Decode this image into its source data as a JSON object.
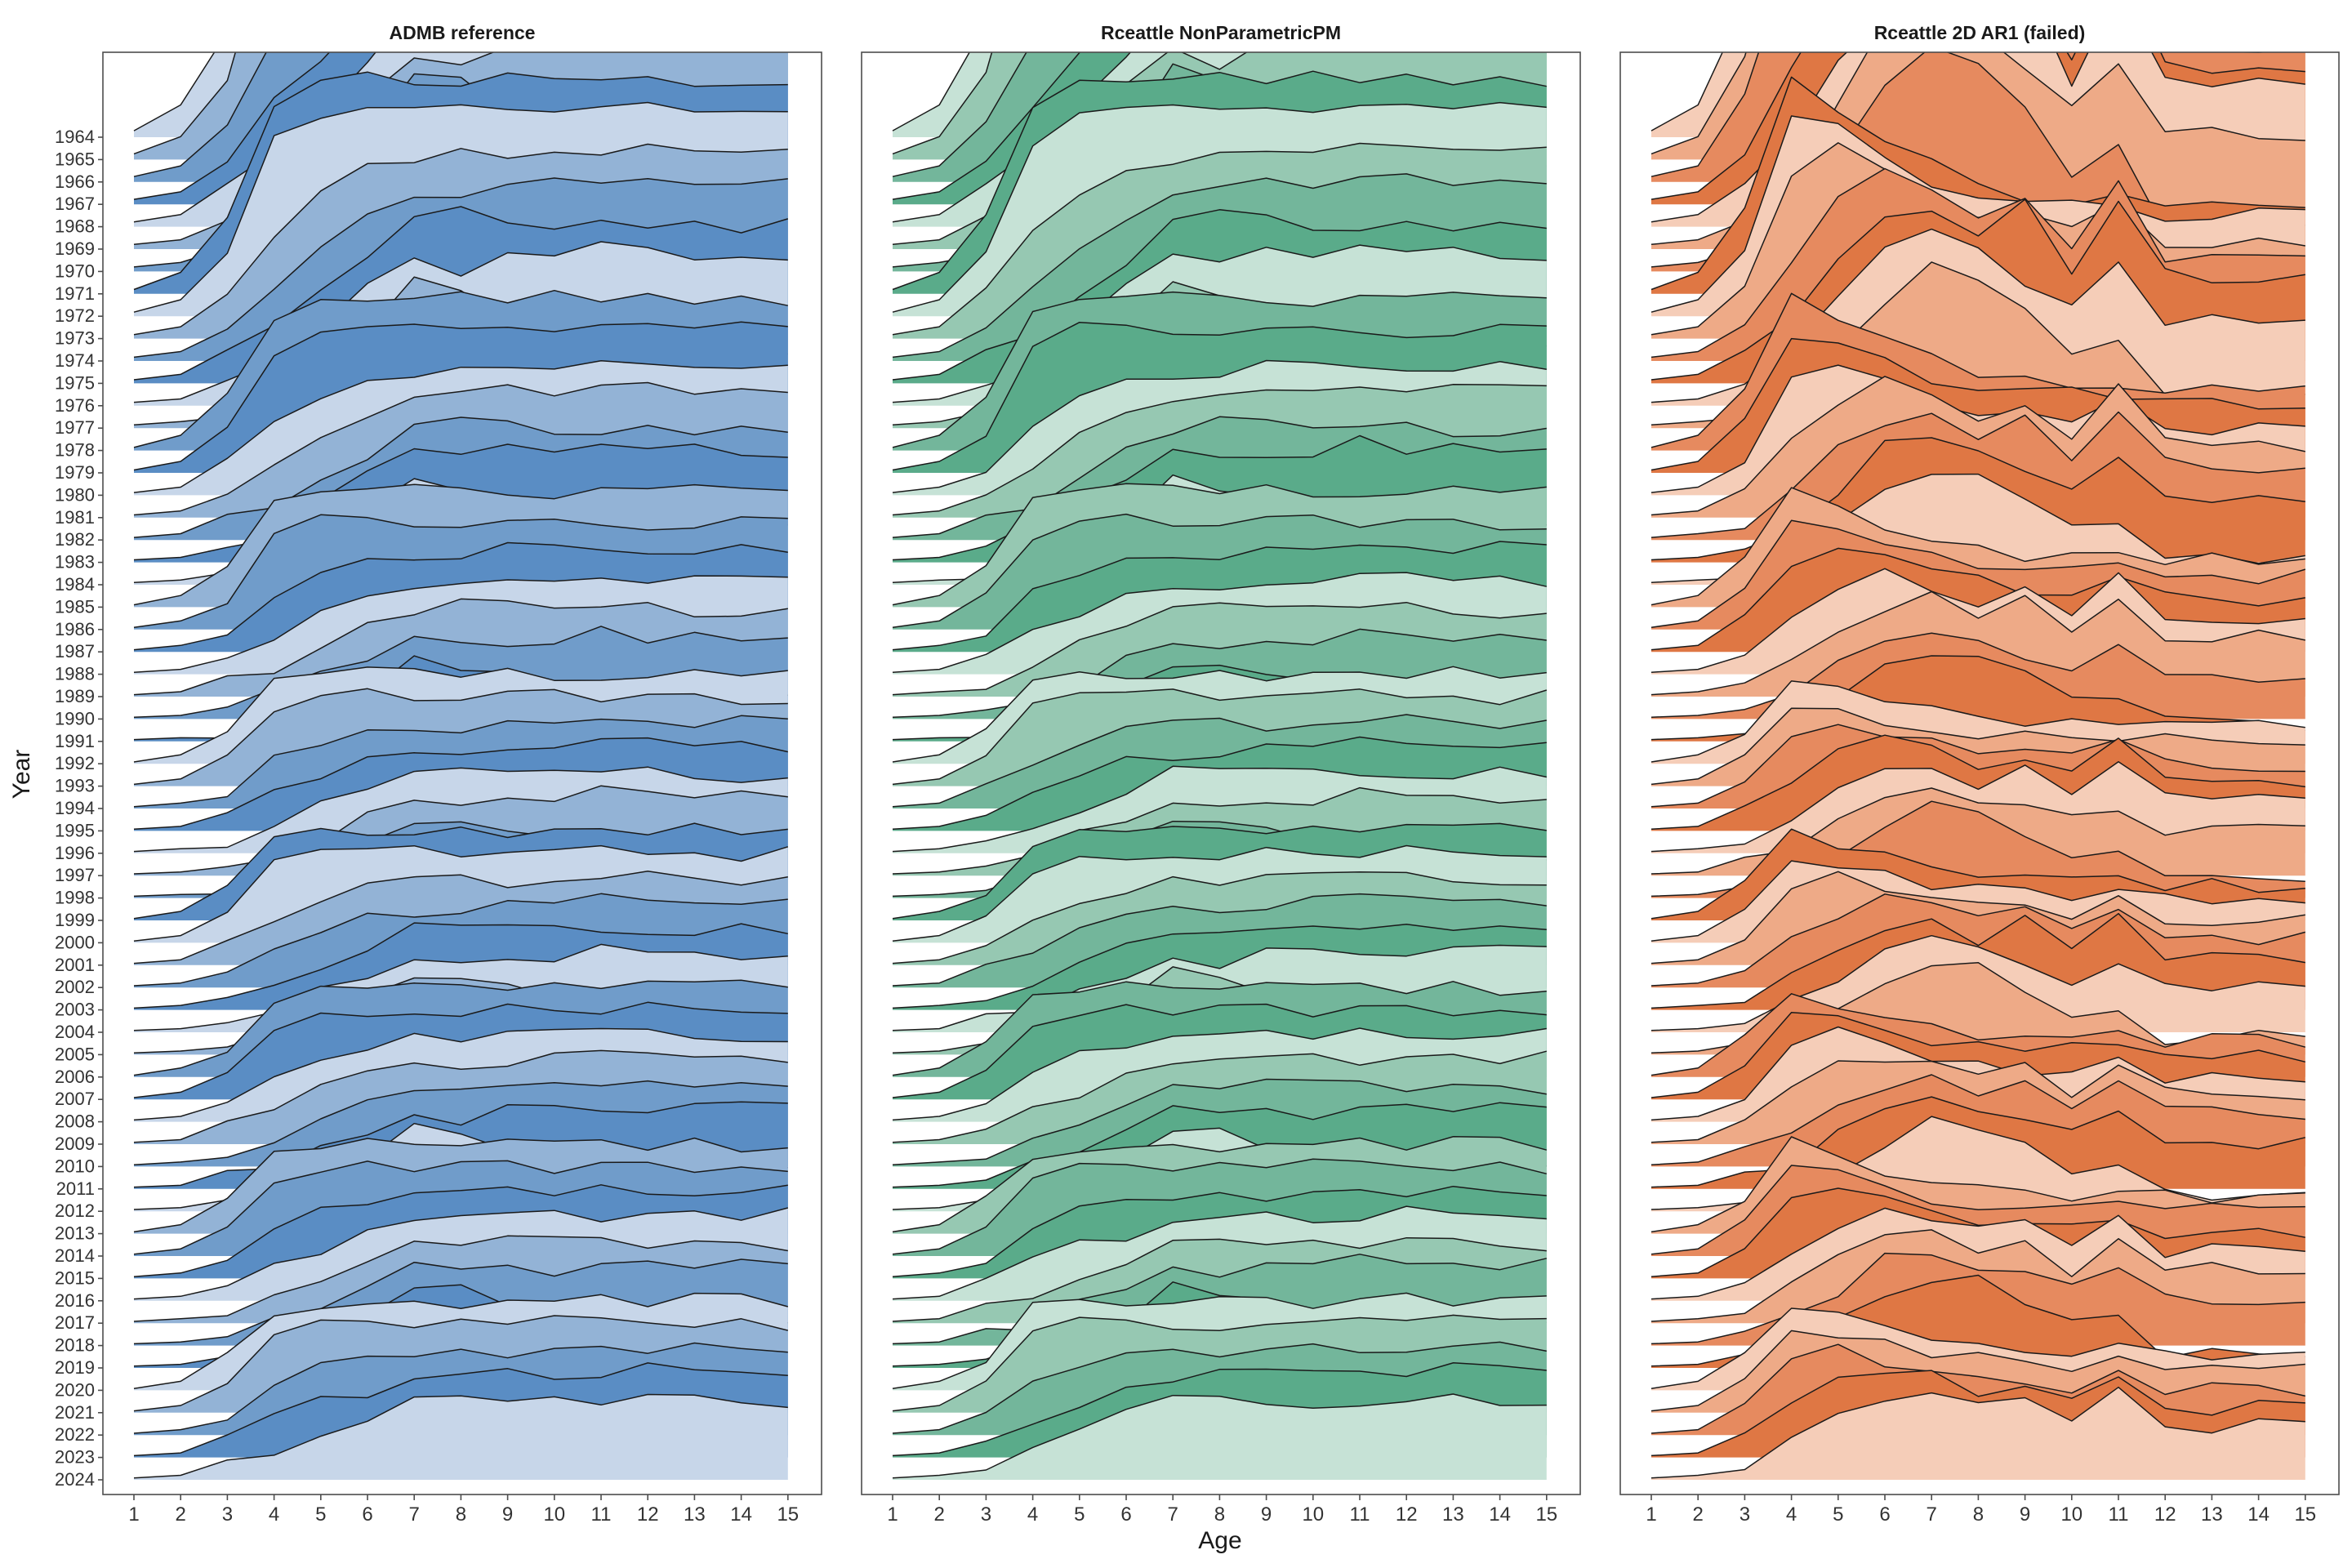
{
  "chart_data": {
    "type": "ridgeline",
    "xlabel": "Age",
    "ylabel": "Year",
    "ages": [
      1,
      2,
      3,
      4,
      5,
      6,
      7,
      8,
      9,
      10,
      11,
      12,
      13,
      14,
      15
    ],
    "years": [
      1964,
      1965,
      1966,
      1967,
      1968,
      1969,
      1970,
      1971,
      1972,
      1973,
      1974,
      1975,
      1976,
      1977,
      1978,
      1979,
      1980,
      1981,
      1982,
      1983,
      1984,
      1985,
      1986,
      1987,
      1988,
      1989,
      1990,
      1991,
      1992,
      1993,
      1994,
      1995,
      1996,
      1997,
      1998,
      1999,
      2000,
      2001,
      2002,
      2003,
      2004,
      2005,
      2006,
      2007,
      2008,
      2009,
      2010,
      2011,
      2012,
      2013,
      2014,
      2015,
      2016,
      2017,
      2018,
      2019,
      2020,
      2021,
      2022,
      2023,
      2024
    ],
    "ridge_height_scale_rows": 4,
    "panels": [
      {
        "title": "ADMB reference",
        "colors": [
          "#c7d6e9",
          "#93b3d6",
          "#709cca",
          "#5a8dc4"
        ],
        "profiles": [
          [
            0.02,
            0.1,
            0.35,
            0.9,
            1,
            1,
            1,
            1,
            1,
            1,
            1,
            1,
            1,
            1,
            1
          ],
          [
            0.02,
            0.08,
            0.3,
            0.85,
            1,
            1,
            1,
            1,
            1,
            1,
            1,
            1,
            1,
            1,
            1
          ],
          [
            0.02,
            0.06,
            0.22,
            0.55,
            0.75,
            0.85,
            0.9,
            0.93,
            0.95,
            0.96,
            0.97,
            0.98,
            0.98,
            0.98,
            0.98
          ],
          [
            0.02,
            0.05,
            0.18,
            0.4,
            0.6,
            0.75,
            0.85,
            0.9,
            0.93,
            0.95,
            0.96,
            0.97,
            0.97,
            0.97,
            0.97
          ],
          [
            0.02,
            0.05,
            0.15,
            0.3,
            0.5,
            0.7,
            0.9,
            0.95,
            0.92,
            0.88,
            0.88,
            0.88,
            0.88,
            0.88,
            0.88
          ],
          [
            0.02,
            0.04,
            0.12,
            0.25,
            0.45,
            0.68,
            0.85,
            0.8,
            0.9,
            0.85,
            0.95,
            0.9,
            0.9,
            0.9,
            0.9
          ],
          [
            0.02,
            0.04,
            0.1,
            0.22,
            0.4,
            0.6,
            0.9,
            0.85,
            0.7,
            0.6,
            0.55,
            0.5,
            0.5,
            0.5,
            0.5
          ]
        ],
        "weights": [
          3.6,
          3.2,
          3,
          2.8,
          2.7,
          2.6,
          2.5,
          2.4,
          2.3,
          2.2,
          2.1,
          2,
          1.9,
          1.8,
          1.7,
          1.6,
          1.5,
          1.5,
          1.4,
          1.4,
          1.3,
          1.3,
          1.2,
          1.2,
          1.1,
          1.1,
          1,
          1,
          1,
          1,
          1,
          1,
          1,
          1,
          1,
          1,
          1,
          1,
          1,
          1,
          1,
          1,
          1,
          1,
          1,
          1,
          1,
          1,
          1,
          1,
          1,
          1,
          1,
          1,
          1,
          1,
          1,
          1,
          1,
          1,
          1
        ]
      },
      {
        "title": "Rceattle NonParametricPM",
        "colors": [
          "#c6e2d6",
          "#96c8b2",
          "#73b69b",
          "#5aab8a"
        ],
        "profiles": [
          [
            0.02,
            0.1,
            0.35,
            0.9,
            1,
            1,
            1,
            1,
            1,
            1,
            1,
            1,
            1,
            1,
            1
          ],
          [
            0.02,
            0.08,
            0.3,
            0.85,
            1,
            1,
            1,
            1,
            1,
            1,
            1,
            1,
            1,
            1,
            1
          ],
          [
            0.02,
            0.06,
            0.22,
            0.55,
            0.75,
            0.85,
            0.9,
            0.93,
            0.95,
            0.96,
            0.97,
            0.98,
            0.98,
            0.98,
            0.98
          ],
          [
            0.02,
            0.05,
            0.18,
            0.4,
            0.6,
            0.75,
            0.85,
            0.9,
            0.93,
            0.95,
            0.96,
            0.97,
            0.97,
            0.97,
            0.97
          ],
          [
            0.02,
            0.05,
            0.15,
            0.3,
            0.5,
            0.7,
            0.9,
            0.95,
            0.92,
            0.88,
            0.88,
            0.88,
            0.88,
            0.88,
            0.88
          ],
          [
            0.02,
            0.04,
            0.12,
            0.25,
            0.45,
            0.68,
            0.85,
            0.8,
            0.9,
            0.85,
            0.95,
            0.9,
            0.9,
            0.9,
            0.9
          ],
          [
            0.02,
            0.04,
            0.1,
            0.22,
            0.4,
            0.6,
            0.9,
            0.85,
            0.7,
            0.6,
            0.55,
            0.5,
            0.5,
            0.5,
            0.5
          ]
        ],
        "weights": [
          3.6,
          3.2,
          3,
          2.8,
          2.7,
          2.6,
          2.5,
          2.4,
          2.3,
          2.2,
          2.1,
          2,
          1.9,
          1.8,
          1.7,
          1.6,
          1.5,
          1.5,
          1.4,
          1.4,
          1.3,
          1.3,
          1.2,
          1.2,
          1.1,
          1.1,
          1,
          1,
          1,
          1,
          1,
          1,
          1,
          1,
          1,
          1,
          1,
          1,
          1,
          1,
          1,
          1,
          1,
          1,
          1,
          1,
          1,
          1,
          1,
          1,
          1,
          1,
          1,
          1,
          1,
          1,
          1,
          1,
          1,
          1,
          1
        ]
      },
      {
        "title": "Rceattle 2D AR1 (failed)",
        "colors": [
          "#f5cdb8",
          "#eeaa87",
          "#e68a5f",
          "#df7744"
        ],
        "profiles": [
          [
            0.02,
            0.1,
            0.4,
            1,
            0.85,
            0.7,
            0.6,
            0.5,
            0.45,
            0.45,
            0.45,
            0.4,
            0.4,
            0.4,
            0.4
          ],
          [
            0.02,
            0.08,
            0.35,
            0.95,
            0.9,
            0.75,
            0.65,
            0.6,
            0.55,
            0.55,
            0.55,
            0.5,
            0.5,
            0.5,
            0.5
          ],
          [
            0.02,
            0.06,
            0.3,
            0.85,
            1,
            0.85,
            0.7,
            0.65,
            0.6,
            0.55,
            0.7,
            0.5,
            0.5,
            0.5,
            0.5
          ],
          [
            0.02,
            0.05,
            0.2,
            0.55,
            0.85,
            1,
            0.9,
            0.75,
            0.85,
            0.6,
            0.95,
            0.55,
            0.55,
            0.55,
            0.55
          ],
          [
            0.02,
            0.05,
            0.15,
            0.4,
            0.7,
            0.9,
            1,
            0.8,
            1,
            0.6,
            1,
            0.6,
            0.6,
            0.6,
            0.6
          ],
          [
            0.02,
            0.04,
            0.12,
            0.3,
            0.6,
            0.95,
            1,
            0.9,
            0.75,
            0.6,
            0.8,
            0.5,
            0.5,
            0.5,
            0.5
          ],
          [
            0.02,
            0.04,
            0.1,
            0.25,
            0.5,
            0.8,
            1,
            0.95,
            0.7,
            0.45,
            0.55,
            0.2,
            0.2,
            0.2,
            0.2
          ]
        ],
        "weights": [
          3.6,
          3.2,
          3,
          2.8,
          2.7,
          2.6,
          2.5,
          2.4,
          2.3,
          2.2,
          2.1,
          2,
          1.9,
          1.8,
          1.7,
          1.6,
          1.5,
          1.5,
          1.4,
          1.4,
          1.3,
          1.3,
          1.2,
          1.2,
          1.1,
          1.1,
          1,
          1,
          1,
          1,
          1,
          1,
          1,
          1,
          1,
          1,
          1,
          1,
          1,
          1,
          1,
          1,
          1,
          1,
          1,
          1,
          1,
          1,
          1,
          1,
          1,
          1,
          1,
          1,
          1,
          1,
          1,
          1,
          1,
          1,
          1
        ]
      }
    ]
  }
}
